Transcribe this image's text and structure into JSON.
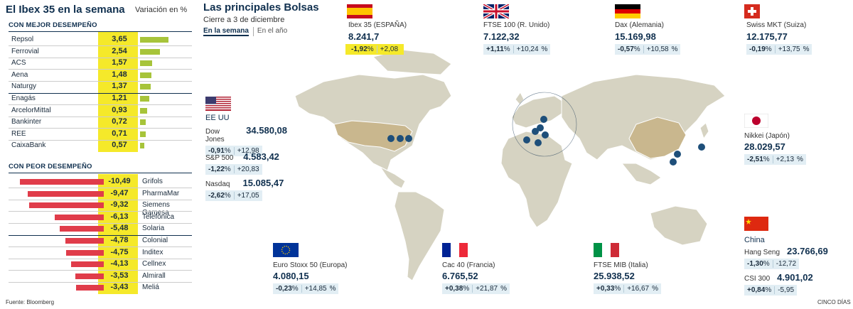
{
  "left": {
    "title": "El Ibex 35 en la semana",
    "subtitle": "Variación en %",
    "best_label": "CON MEJOR DESEMPEÑO",
    "worst_label": "CON PEOR DESEMPEÑO",
    "source": "Fuente: Bloomberg"
  },
  "right": {
    "title": "Las principales Bolsas",
    "subtitle": "Cierre a 3 de diciembre",
    "tab_week": "En la semana",
    "tab_year": "En el año",
    "credit": "CINCO DÍAS"
  },
  "chart_data": [
    {
      "type": "bar",
      "title": "CON MEJOR DESEMPEÑO",
      "categories": [
        "Repsol",
        "Ferrovial",
        "ACS",
        "Aena",
        "Naturgy",
        "Enagás",
        "ArcelorMittal",
        "Bankinter",
        "REE",
        "CaixaBank"
      ],
      "values": [
        3.65,
        2.54,
        1.57,
        1.48,
        1.37,
        1.21,
        0.93,
        0.72,
        0.71,
        0.57
      ],
      "labels": [
        "3,65",
        "2,54",
        "1,57",
        "1,48",
        "1,37",
        "1,21",
        "0,93",
        "0,72",
        "0,71",
        "0,57"
      ],
      "color": "#a7c43a",
      "highlight": "#f5e92a"
    },
    {
      "type": "bar",
      "title": "CON PEOR DESEMPEÑO",
      "categories": [
        "Grifols",
        "PharmaMar",
        "Siemens Gamesa",
        "Telefónica",
        "Solaria",
        "Colonial",
        "Inditex",
        "Cellnex",
        "Almirall",
        "Meliá"
      ],
      "values": [
        -10.49,
        -9.47,
        -9.32,
        -6.13,
        -5.48,
        -4.78,
        -4.75,
        -4.13,
        -3.53,
        -3.43
      ],
      "labels": [
        "-10,49",
        "-9,47",
        "-9,32",
        "-6,13",
        "-5,48",
        "-4,78",
        "-4,75",
        "-4,13",
        "-3,53",
        "-3,43"
      ],
      "color": "#e03c4a",
      "highlight": "#f5e92a"
    }
  ],
  "markets": {
    "ibex": {
      "name": "Ibex 35 (ESPAÑA)",
      "value": "8.241,7",
      "week": "-1,92",
      "year": "+2,08"
    },
    "ftse": {
      "name": "FTSE 100 (R. Unido)",
      "value": "7.122,32",
      "week": "+1,11",
      "year": "+10,24"
    },
    "dax": {
      "name": "Dax (Alemania)",
      "value": "15.169,98",
      "week": "-0,57",
      "year": "+10,58"
    },
    "smi": {
      "name": "Swiss MKT (Suiza)",
      "value": "12.175,77",
      "week": "-0,19",
      "year": "+13,75"
    },
    "us_label": "EE UU",
    "dow": {
      "name": "Dow Jones",
      "value": "34.580,08",
      "week": "-0,91",
      "year": "+12,98"
    },
    "sp": {
      "name": "S&P 500",
      "value": "4.583,42",
      "week": "-1,22",
      "year": "+20,83"
    },
    "nasdaq": {
      "name": "Nasdaq",
      "value": "15.085,47",
      "week": "-2,62",
      "year": "+17,05"
    },
    "nikkei": {
      "name": "Nikkei (Japón)",
      "value": "28.029,57",
      "week": "-2,51",
      "year": "+2,13"
    },
    "china_label": "China",
    "hangseng": {
      "name": "Hang Seng",
      "value": "23.766,69",
      "week": "-1,30",
      "year": "-12,72"
    },
    "csi": {
      "name": "CSI 300",
      "value": "4.901,02",
      "week": "+0,84",
      "year": "-5,95"
    },
    "stoxx": {
      "name": "Euro Stoxx 50 (Europa)",
      "value": "4.080,15",
      "week": "-0,23",
      "year": "+14,85"
    },
    "cac": {
      "name": "Cac 40 (Francia)",
      "value": "6.765,52",
      "week": "+0,38",
      "year": "+21,87"
    },
    "mib": {
      "name": "FTSE MIB (Italia)",
      "value": "25.938,52",
      "week": "+0,33",
      "year": "+16,67"
    },
    "pct": "%"
  }
}
